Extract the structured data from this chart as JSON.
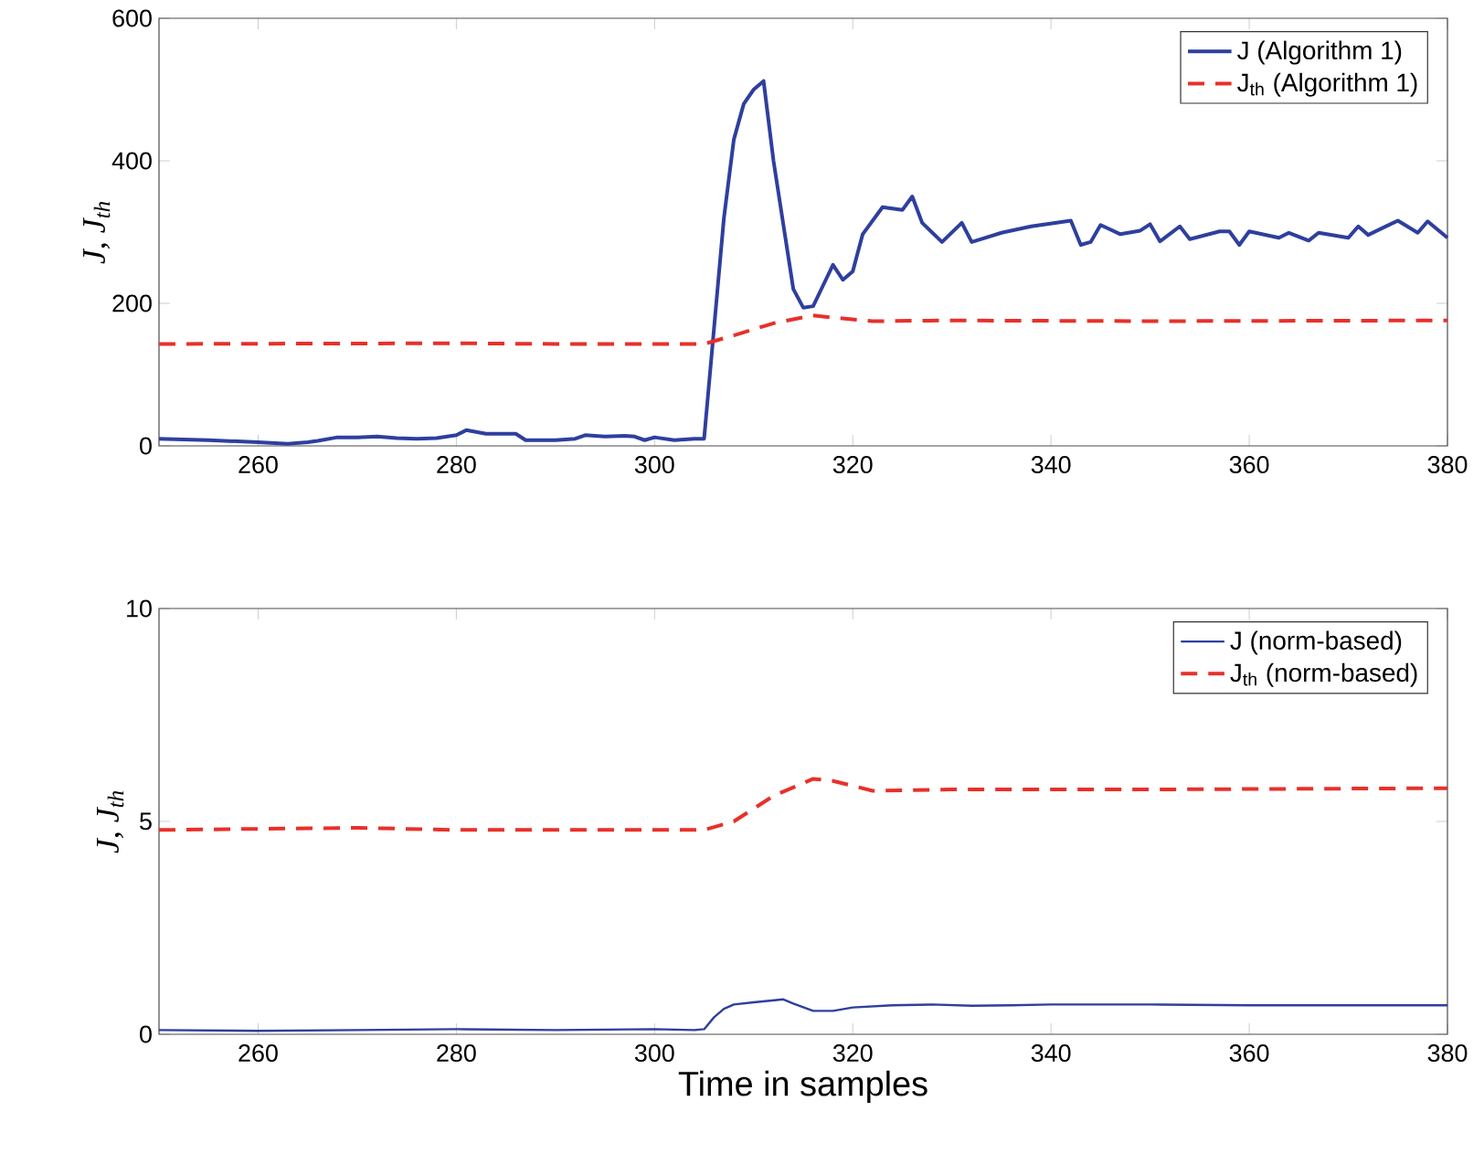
{
  "chart_data": [
    {
      "type": "line",
      "ylabel": "J, J$_{th}$",
      "xlim": [
        250,
        380
      ],
      "ylim": [
        0,
        600
      ],
      "xticks": [
        260,
        280,
        300,
        320,
        340,
        360,
        380
      ],
      "yticks": [
        0,
        200,
        400,
        600
      ],
      "legend": "top right",
      "series": [
        {
          "name": "J (Algorithm 1)",
          "color": "#2e3f9e",
          "line_style": "solid",
          "x": [
            250,
            255,
            260,
            263,
            265,
            266,
            268,
            270,
            272,
            274,
            276,
            278,
            280,
            281,
            283,
            286,
            287,
            290,
            292,
            293,
            295,
            297,
            298,
            299,
            300,
            302,
            304,
            305,
            307,
            308,
            309,
            310,
            311,
            312,
            313,
            314,
            315,
            316,
            317,
            318,
            319,
            320,
            321,
            323,
            325,
            326,
            327,
            329,
            331,
            332,
            335,
            338,
            342,
            343,
            344,
            345,
            347,
            349,
            350,
            351,
            353,
            354,
            357,
            358,
            359,
            360,
            363,
            364,
            366,
            367,
            370,
            371,
            372,
            375,
            377,
            378,
            380
          ],
          "values": [
            10,
            8,
            5,
            3,
            5,
            7,
            12,
            12,
            13,
            11,
            10,
            11,
            15,
            22,
            17,
            17,
            8,
            8,
            10,
            15,
            13,
            14,
            13,
            8,
            12,
            8,
            10,
            10,
            320,
            430,
            480,
            500,
            512,
            400,
            310,
            220,
            194,
            196,
            225,
            254,
            233,
            245,
            297,
            335,
            331,
            350,
            313,
            286,
            313,
            286,
            299,
            308,
            316,
            282,
            286,
            310,
            297,
            302,
            311,
            287,
            308,
            290,
            301,
            301,
            282,
            301,
            292,
            299,
            288,
            299,
            292,
            308,
            296,
            316,
            299,
            315,
            292
          ]
        },
        {
          "name": "J$_{th}$  (Algorithm 1)",
          "color": "#e8302a",
          "line_style": "dashed",
          "x": [
            250,
            280,
            290,
            305,
            308,
            312,
            316,
            318,
            322,
            330,
            350,
            380
          ],
          "values": [
            143,
            144,
            143,
            143,
            155,
            172,
            183,
            180,
            175,
            176,
            175,
            176
          ]
        }
      ]
    },
    {
      "type": "line",
      "ylabel": "J, J$_{th}$",
      "xlabel": "Time in samples",
      "xlim": [
        250,
        380
      ],
      "ylim": [
        0,
        10
      ],
      "xticks": [
        260,
        280,
        300,
        320,
        340,
        360,
        380
      ],
      "yticks": [
        0,
        5,
        10
      ],
      "legend": "top right",
      "series": [
        {
          "name": "J  (norm-based)",
          "color": "#2e3f9e",
          "line_style": "solid",
          "x": [
            250,
            260,
            270,
            280,
            290,
            300,
            304,
            305,
            306,
            307,
            308,
            310,
            313,
            314,
            316,
            318,
            320,
            324,
            328,
            332,
            336,
            340,
            350,
            360,
            380
          ],
          "values": [
            0.1,
            0.08,
            0.1,
            0.12,
            0.1,
            0.12,
            0.1,
            0.12,
            0.4,
            0.6,
            0.7,
            0.75,
            0.82,
            0.72,
            0.55,
            0.55,
            0.63,
            0.68,
            0.7,
            0.67,
            0.68,
            0.7,
            0.7,
            0.68,
            0.68
          ]
        },
        {
          "name": "J$_{th}$  (norm-based)",
          "color": "#e8302a",
          "line_style": "dashed",
          "x": [
            250,
            270,
            280,
            305,
            308,
            312,
            316,
            318,
            322,
            330,
            350,
            380
          ],
          "values": [
            4.8,
            4.85,
            4.8,
            4.8,
            5.0,
            5.6,
            6.0,
            5.95,
            5.72,
            5.75,
            5.75,
            5.78
          ]
        }
      ]
    }
  ]
}
